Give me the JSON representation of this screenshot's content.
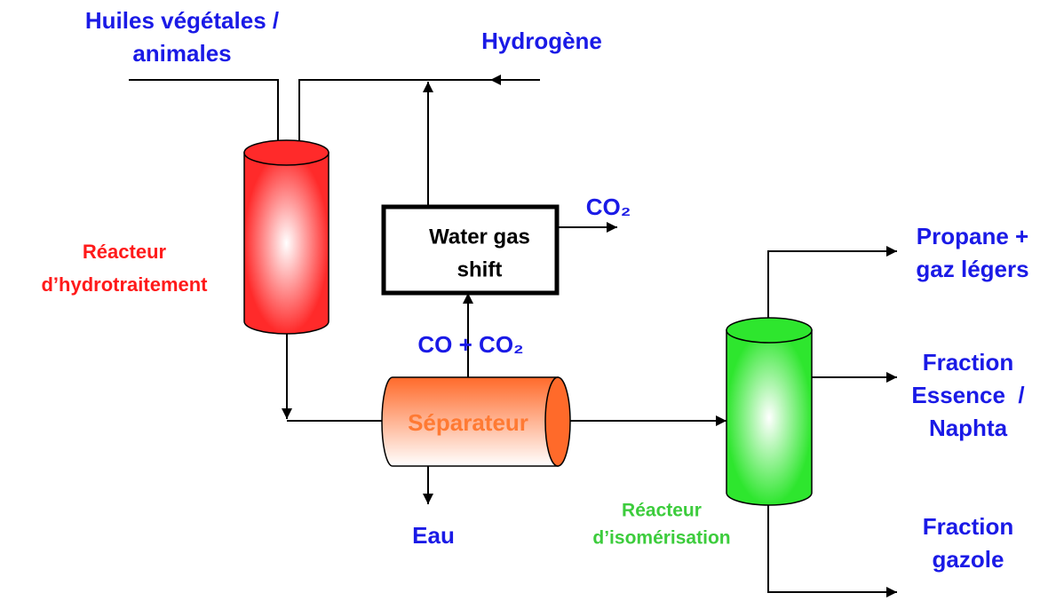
{
  "labels": {
    "feed": [
      "Huiles végétales /",
      "animales"
    ],
    "hydrogen": [
      "Hydrogène"
    ],
    "co2_out": [
      "CO₂"
    ],
    "wgs": [
      "Water gas",
      "shift"
    ],
    "hydro_reactor": [
      "Réacteur",
      "d’hydrotraitement"
    ],
    "co_co2": [
      "CO + CO₂"
    ],
    "separator": [
      "Séparateur"
    ],
    "water": [
      "Eau"
    ],
    "iso_reactor": [
      "Réacteur",
      "d’isomérisation"
    ],
    "propane": [
      "Propane +",
      "gaz légers"
    ],
    "naphtha": [
      "Fraction",
      "Essence  /",
      "Naphta"
    ],
    "diesel": [
      "Fraction",
      "gazole"
    ]
  }
}
